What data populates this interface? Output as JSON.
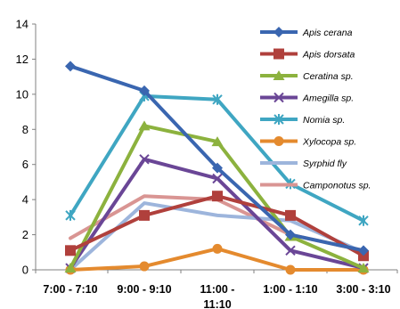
{
  "chart_data": {
    "type": "line",
    "categories": [
      [
        "7:00 - 7:10"
      ],
      [
        "9:00 - 9:10"
      ],
      [
        "11:00 -",
        "11:10"
      ],
      [
        "1:00 - 1:10"
      ],
      [
        "3:00 - 3:10"
      ]
    ],
    "ylim": [
      0,
      14
    ],
    "yticks": [
      0,
      2,
      4,
      6,
      8,
      10,
      12,
      14
    ],
    "grid": false,
    "legend_position": "top-right",
    "series": [
      {
        "name": "Apis cerana",
        "color": "#3A66B0",
        "marker": "diamond",
        "values": [
          11.6,
          10.2,
          5.8,
          2.0,
          1.1
        ]
      },
      {
        "name": "Apis dorsata",
        "color": "#B0403C",
        "marker": "square",
        "values": [
          1.1,
          3.1,
          4.2,
          3.1,
          0.8
        ]
      },
      {
        "name": "Ceratina sp.",
        "color": "#8CB23E",
        "marker": "triangle",
        "values": [
          0.1,
          8.2,
          7.3,
          1.9,
          0.1
        ]
      },
      {
        "name": "Amegilla sp.",
        "color": "#6A4696",
        "marker": "x",
        "values": [
          0.1,
          6.3,
          5.2,
          1.1,
          0.1
        ]
      },
      {
        "name": "Nomia sp.",
        "color": "#3FA6C2",
        "marker": "star",
        "values": [
          3.1,
          9.9,
          9.7,
          4.9,
          2.8
        ]
      },
      {
        "name": "Xylocopa sp.",
        "color": "#E48A2E",
        "marker": "circle",
        "values": [
          0.0,
          0.2,
          1.2,
          0.0,
          0.0
        ]
      },
      {
        "name": "Syrphid fly",
        "color": "#9DB5DC",
        "marker": "none",
        "values": [
          0.0,
          3.8,
          3.1,
          2.8,
          1.0
        ]
      },
      {
        "name": "Camponotus sp.",
        "color": "#D99593",
        "marker": "none",
        "values": [
          1.8,
          4.2,
          4.0,
          2.0,
          1.1
        ]
      }
    ]
  }
}
